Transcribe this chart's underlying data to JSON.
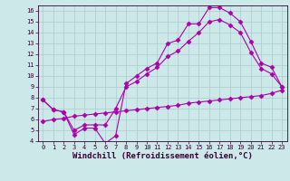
{
  "bg_color": "#cde8e8",
  "line_color": "#aa00aa",
  "grid_color": "#aacccc",
  "xlabel": "Windchill (Refroidissement éolien,°C)",
  "xlim": [
    -0.5,
    23.5
  ],
  "ylim": [
    4,
    16.5
  ],
  "xticks": [
    0,
    1,
    2,
    3,
    4,
    5,
    6,
    7,
    8,
    9,
    10,
    11,
    12,
    13,
    14,
    15,
    16,
    17,
    18,
    19,
    20,
    21,
    22,
    23
  ],
  "yticks": [
    4,
    5,
    6,
    7,
    8,
    9,
    10,
    11,
    12,
    13,
    14,
    15,
    16
  ],
  "curve1_x": [
    0,
    1,
    2,
    3,
    4,
    5,
    6,
    7,
    8,
    9,
    10,
    11,
    12,
    13,
    14,
    15,
    16,
    17,
    18,
    19,
    20,
    21,
    22,
    23
  ],
  "curve1_y": [
    7.8,
    6.9,
    6.7,
    4.6,
    5.2,
    5.2,
    3.8,
    4.5,
    9.3,
    10.0,
    10.7,
    11.2,
    13.0,
    13.3,
    14.8,
    14.8,
    16.3,
    16.3,
    15.8,
    15.0,
    13.2,
    11.2,
    10.8,
    9.0
  ],
  "curve2_x": [
    0,
    1,
    2,
    3,
    4,
    5,
    6,
    7,
    8,
    9,
    10,
    11,
    12,
    13,
    14,
    15,
    16,
    17,
    18,
    19,
    20,
    21,
    22,
    23
  ],
  "curve2_y": [
    7.8,
    6.9,
    6.7,
    5.0,
    5.5,
    5.5,
    5.5,
    7.0,
    9.0,
    9.5,
    10.2,
    10.8,
    11.8,
    12.3,
    13.2,
    14.0,
    15.0,
    15.2,
    14.7,
    14.0,
    12.2,
    10.7,
    10.2,
    9.0
  ],
  "curve3_x": [
    0,
    1,
    2,
    3,
    4,
    5,
    6,
    7,
    8,
    9,
    10,
    11,
    12,
    13,
    14,
    15,
    16,
    17,
    18,
    19,
    20,
    21,
    22,
    23
  ],
  "curve3_y": [
    5.8,
    6.0,
    6.1,
    6.3,
    6.4,
    6.5,
    6.6,
    6.7,
    6.8,
    6.9,
    7.0,
    7.1,
    7.2,
    7.3,
    7.5,
    7.6,
    7.7,
    7.8,
    7.9,
    8.0,
    8.1,
    8.2,
    8.4,
    8.7
  ],
  "marker": "D",
  "markersize": 2.5,
  "linewidth": 0.8,
  "tick_fontsize": 5,
  "xlabel_fontsize": 6.5
}
